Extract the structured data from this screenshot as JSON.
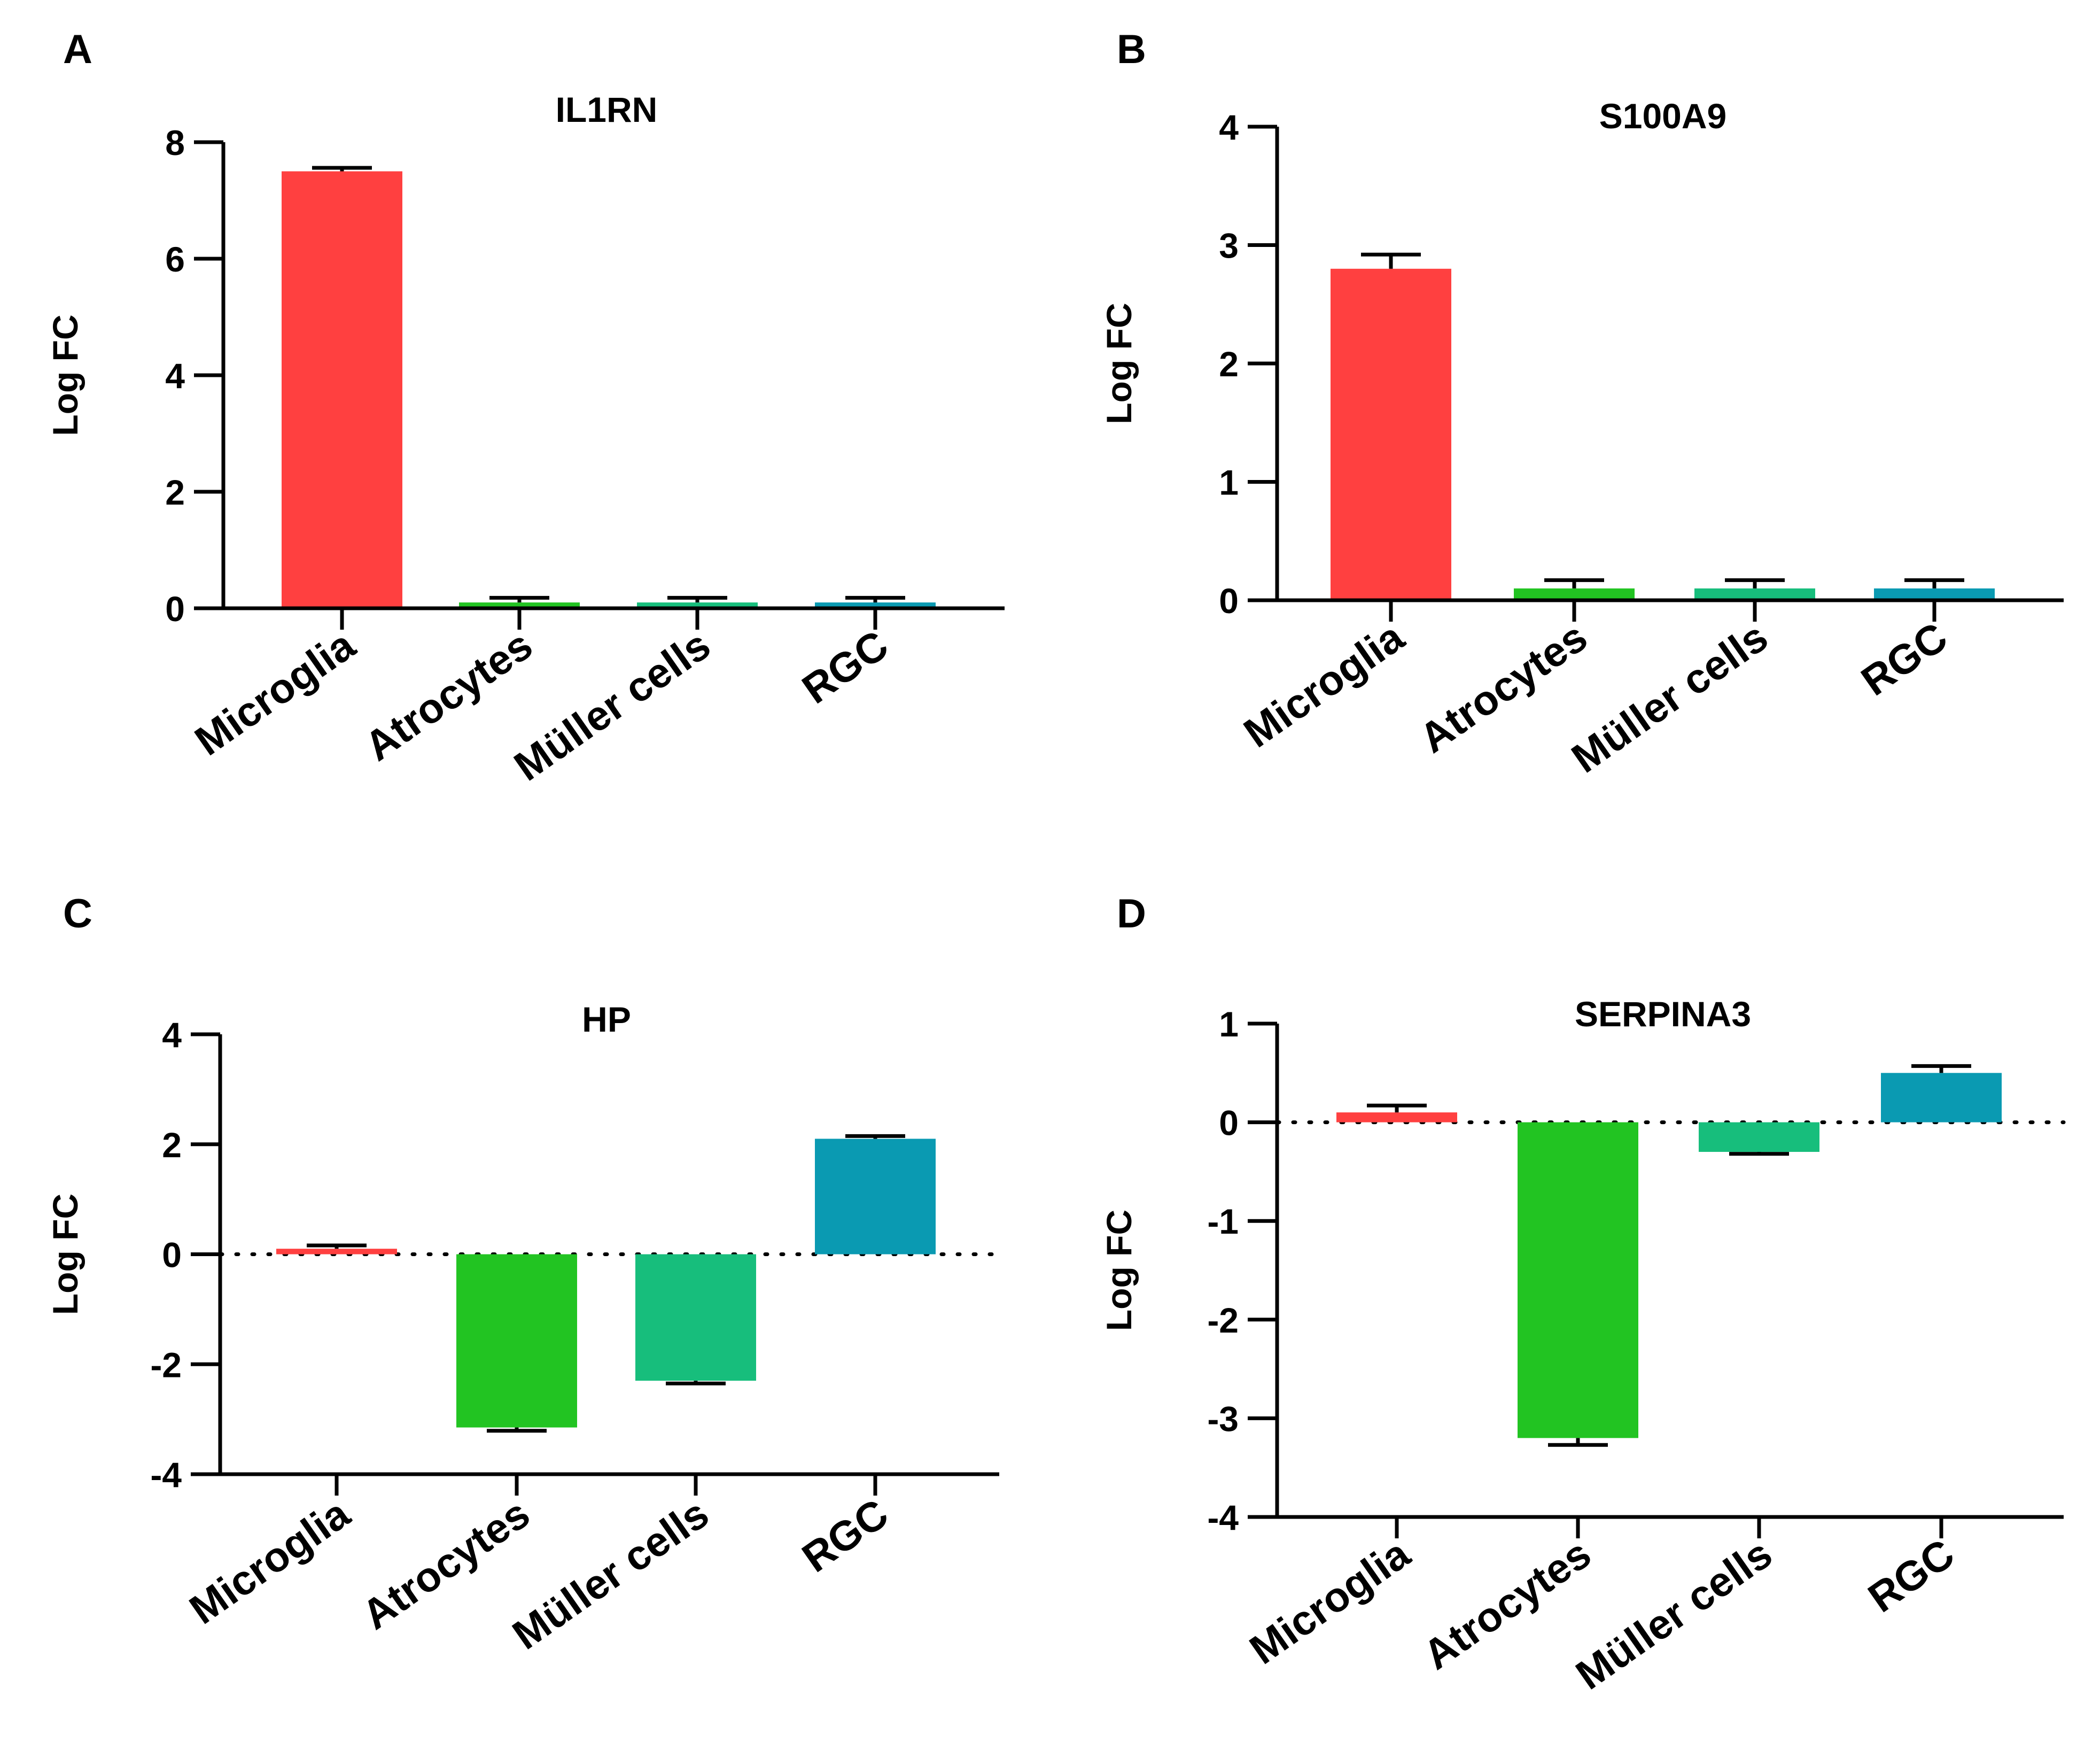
{
  "chart_data": [
    {
      "panel": "A",
      "type": "bar",
      "title": "IL1RN",
      "ylabel": "Log FC",
      "xlabel": "",
      "categories": [
        "Microglia",
        "Atrocytes",
        "Müller cells",
        "RGC"
      ],
      "values": [
        7.5,
        0.1,
        0.1,
        0.1
      ],
      "errors": [
        0.06,
        0.08,
        0.08,
        0.08
      ],
      "colors": [
        "#FF4040",
        "#22C422",
        "#17BE7C",
        "#0A9AB2"
      ],
      "ylim": [
        0,
        8
      ],
      "yticks": [
        "0",
        "2",
        "4",
        "6",
        "8"
      ],
      "zero_line": false
    },
    {
      "panel": "B",
      "type": "bar",
      "title": "S100A9",
      "ylabel": "Log FC",
      "xlabel": "",
      "categories": [
        "Microglia",
        "Atrocytes",
        "Müller cells",
        "RGC"
      ],
      "values": [
        2.8,
        0.1,
        0.1,
        0.1
      ],
      "errors": [
        0.12,
        0.07,
        0.07,
        0.07
      ],
      "colors": [
        "#FF4040",
        "#22C422",
        "#17BE7C",
        "#0A9AB2"
      ],
      "ylim": [
        0,
        4
      ],
      "yticks": [
        "0",
        "1",
        "2",
        "3",
        "4"
      ],
      "zero_line": false
    },
    {
      "panel": "C",
      "type": "bar",
      "title": "HP",
      "ylabel": "Log FC",
      "xlabel": "",
      "categories": [
        "Microglia",
        "Atrocytes",
        "Müller cells",
        "RGC"
      ],
      "values": [
        0.1,
        -3.15,
        -2.3,
        2.1
      ],
      "errors": [
        0.06,
        0.06,
        0.05,
        0.05
      ],
      "colors": [
        "#FF4040",
        "#22C422",
        "#17BE7C",
        "#0A9AB2"
      ],
      "ylim": [
        -4,
        4
      ],
      "yticks": [
        "-4",
        "-2",
        "0",
        "2",
        "4"
      ],
      "zero_line": true
    },
    {
      "panel": "D",
      "type": "bar",
      "title": "SERPINA3",
      "ylabel": "Log FC",
      "xlabel": "",
      "categories": [
        "Microglia",
        "Atrocytes",
        "Müller cells",
        "RGC"
      ],
      "values": [
        0.1,
        -3.2,
        -0.3,
        0.5
      ],
      "errors": [
        0.07,
        0.07,
        0.02,
        0.07
      ],
      "colors": [
        "#FF4040",
        "#22C422",
        "#17BE7C",
        "#0A9AB2"
      ],
      "ylim": [
        -4,
        1
      ],
      "yticks": [
        "-4",
        "-3",
        "-2",
        "-1",
        "0",
        "1"
      ],
      "zero_line": true
    }
  ]
}
